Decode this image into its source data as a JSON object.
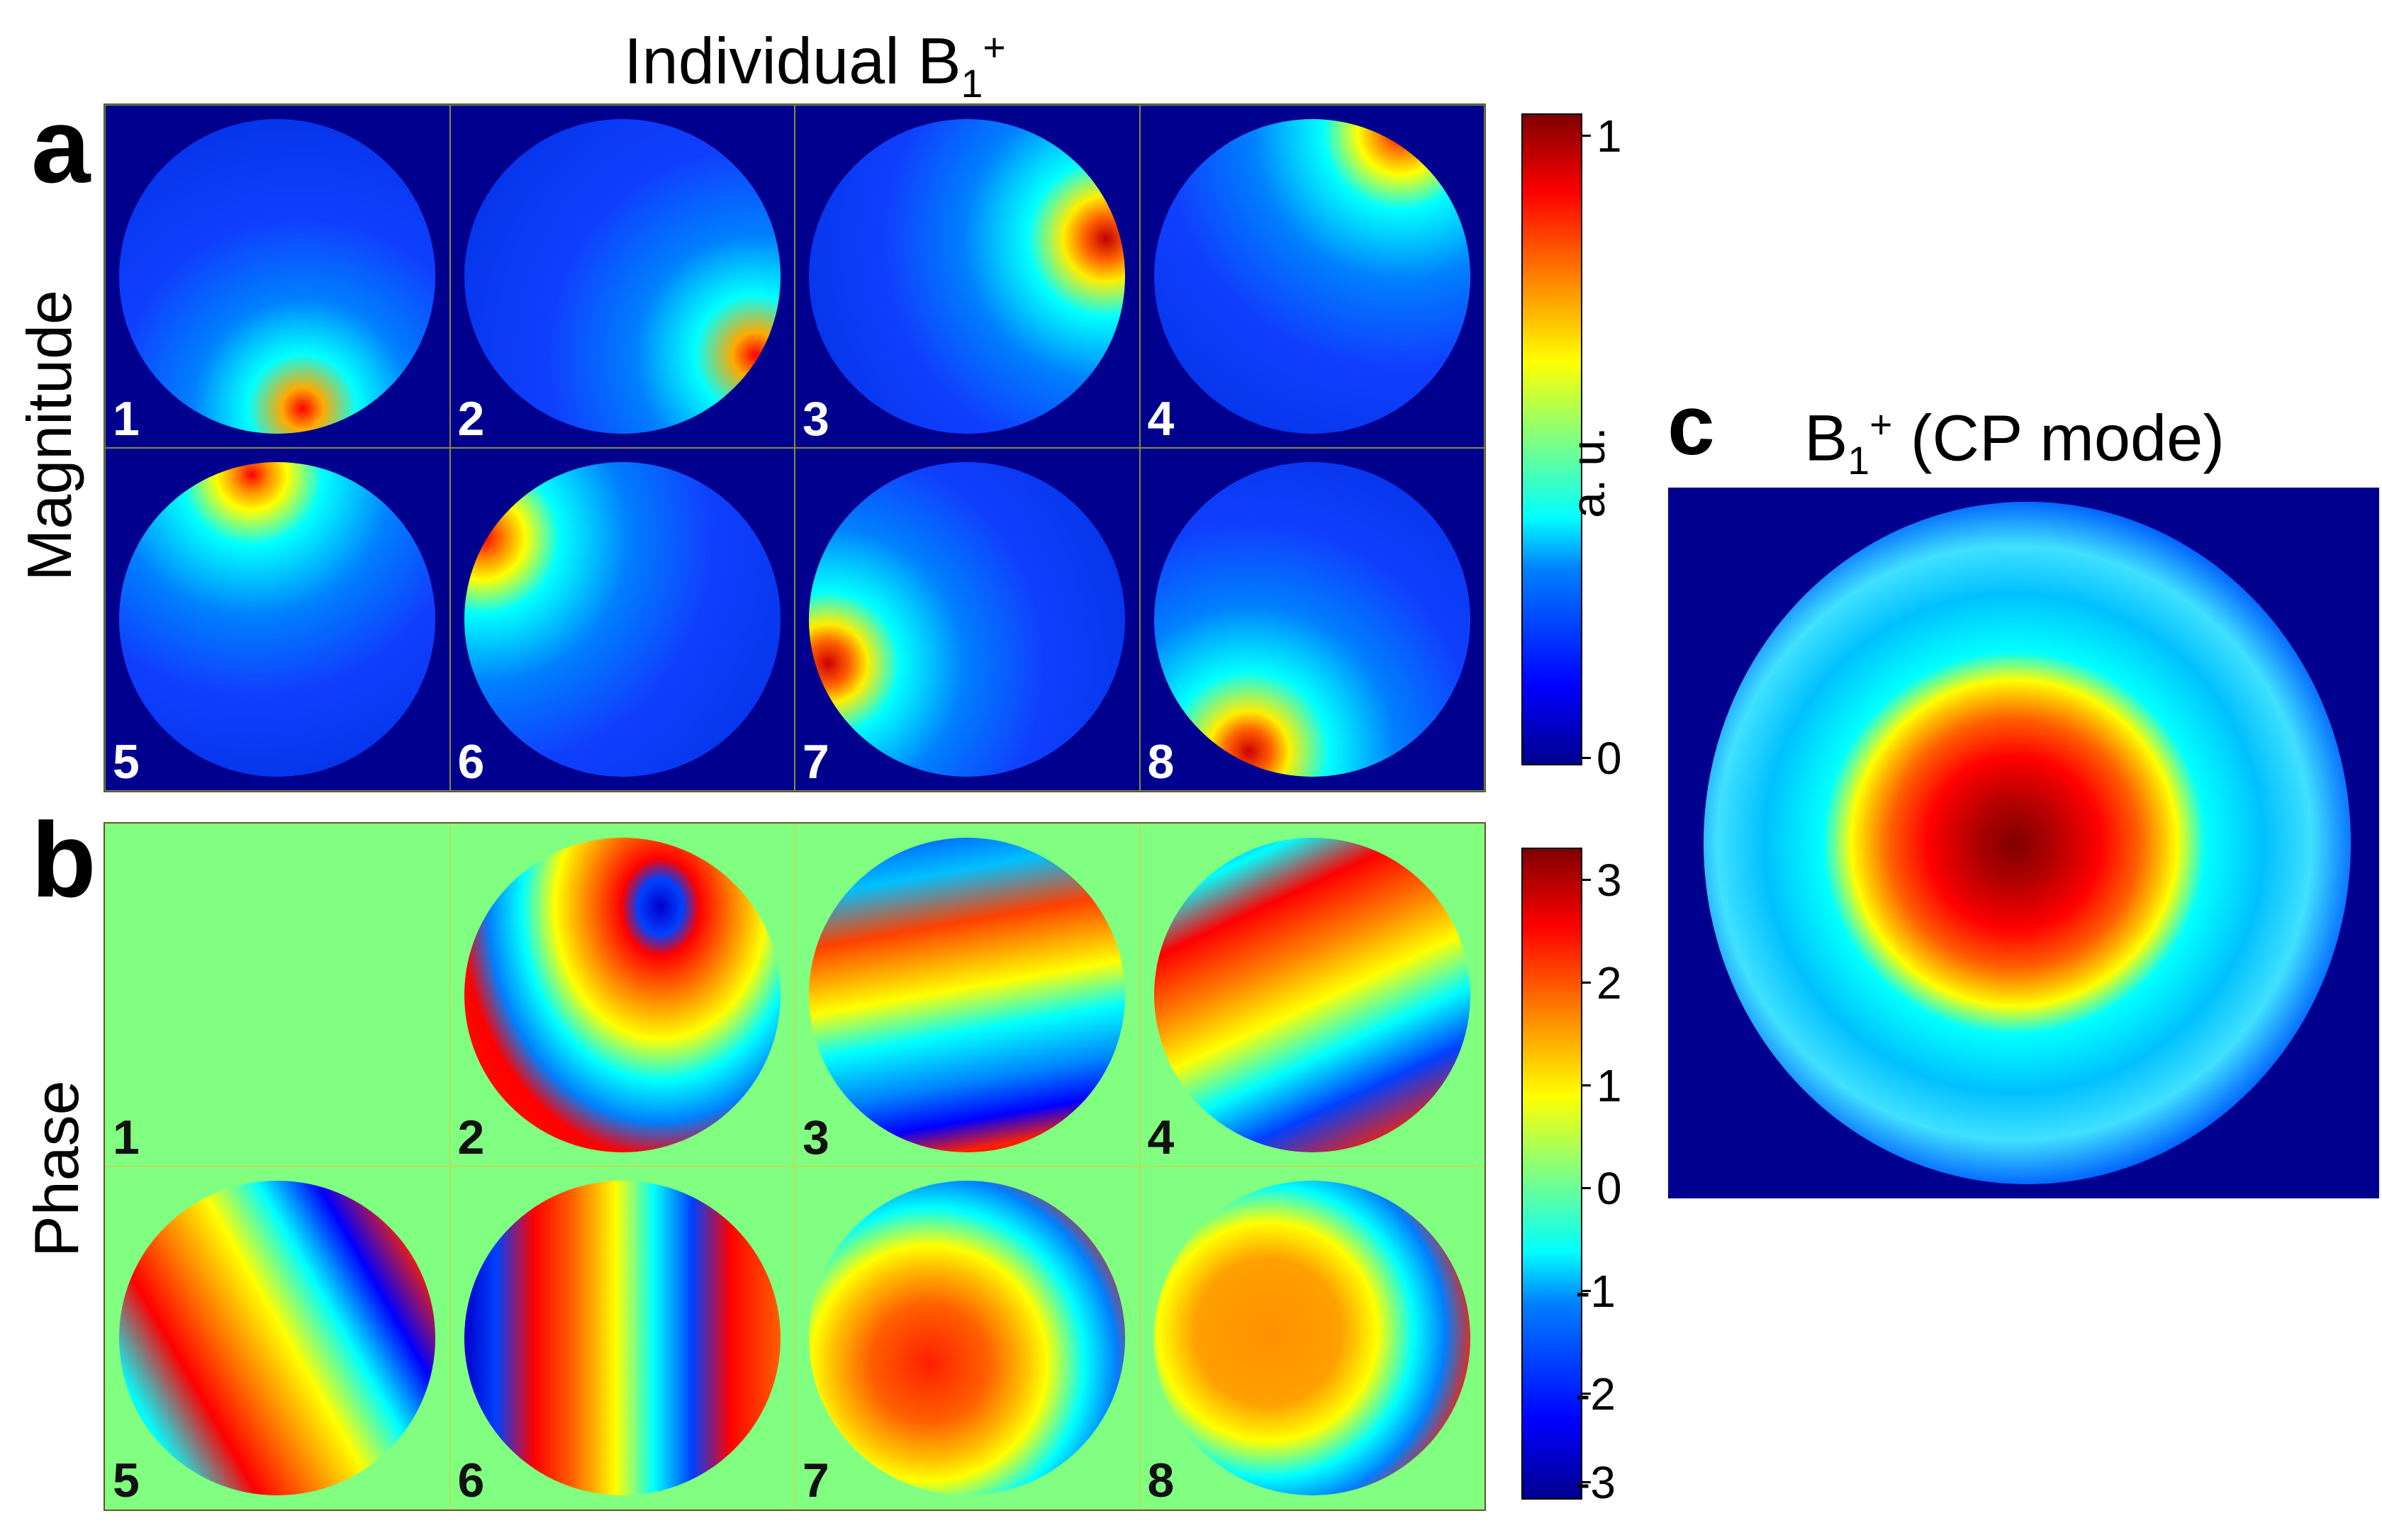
{
  "title_a": {
    "main": "Individual B",
    "sub": "1",
    "sup": "+"
  },
  "panel_letters": {
    "a": "a",
    "b": "b",
    "c": "c"
  },
  "row_labels": {
    "magnitude": "Magnitude",
    "phase": "Phase"
  },
  "channels": [
    "1",
    "2",
    "3",
    "4",
    "5",
    "6",
    "7",
    "8"
  ],
  "colorbar_a": {
    "ticks": [
      "1",
      "0"
    ],
    "label": "a. u."
  },
  "colorbar_b": {
    "ticks": [
      "3",
      "2",
      "1",
      "0",
      "-1",
      "-2",
      "-3"
    ]
  },
  "title_c": {
    "main": "B",
    "sub": "1",
    "sup": "+",
    "rest": " (CP mode)"
  },
  "colors": {
    "jet_dark_blue": "#00008f",
    "jet_blue": "#0000ff",
    "jet_cyan": "#00ffff",
    "jet_yellow": "#ffff00",
    "jet_red": "#ff0000",
    "jet_dark_red": "#800000",
    "phase_background": "#80ff80"
  }
}
